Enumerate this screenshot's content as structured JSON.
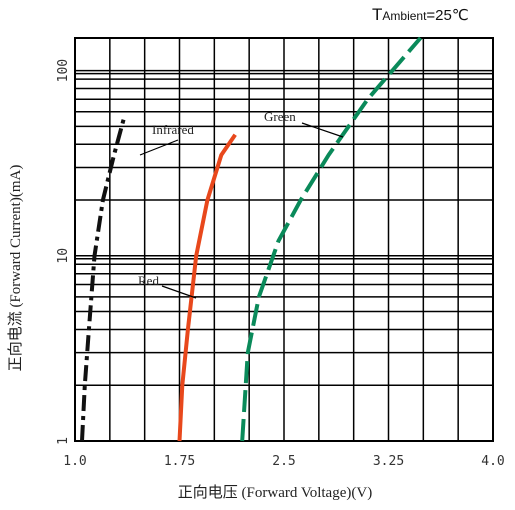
{
  "chart_data": {
    "type": "line",
    "title": "TAmbient =25℃",
    "title_parts": {
      "t": "T",
      "sub": "Ambient",
      "rest": "=25℃"
    },
    "xlabel": "正向电压 (Forward Voltage)(V)",
    "ylabel": "正向电流 (Forward Current)(mA)",
    "x_tick_labels": [
      "1.0",
      "1.75",
      "2.5",
      "3.25",
      "4.0"
    ],
    "x_ticks": [
      1.0,
      1.75,
      2.5,
      3.25,
      4.0
    ],
    "y_tick_labels": [
      "1",
      "10",
      "100"
    ],
    "y_ticks": [
      1,
      10,
      100
    ],
    "xlim": [
      1.0,
      4.0
    ],
    "ylim": [
      1,
      150
    ],
    "yscale": "log",
    "grid": true,
    "series": [
      {
        "name": "Infrared",
        "color": "#111111",
        "dash": "dash-dot",
        "points": [
          [
            1.05,
            1
          ],
          [
            1.07,
            2
          ],
          [
            1.1,
            4
          ],
          [
            1.14,
            10
          ],
          [
            1.2,
            20
          ],
          [
            1.28,
            35
          ],
          [
            1.35,
            55
          ]
        ]
      },
      {
        "name": "Red",
        "color": "#e8481c",
        "dash": "solid",
        "points": [
          [
            1.75,
            1
          ],
          [
            1.77,
            2
          ],
          [
            1.81,
            4
          ],
          [
            1.87,
            10
          ],
          [
            1.95,
            20
          ],
          [
            2.05,
            35
          ],
          [
            2.15,
            45
          ]
        ]
      },
      {
        "name": "Green",
        "color": "#0a8a5a",
        "dash": "dashed",
        "points": [
          [
            2.2,
            1
          ],
          [
            2.24,
            3
          ],
          [
            2.32,
            6
          ],
          [
            2.46,
            12
          ],
          [
            2.62,
            20
          ],
          [
            2.82,
            35
          ],
          [
            3.1,
            70
          ],
          [
            3.48,
            150
          ]
        ]
      }
    ]
  }
}
